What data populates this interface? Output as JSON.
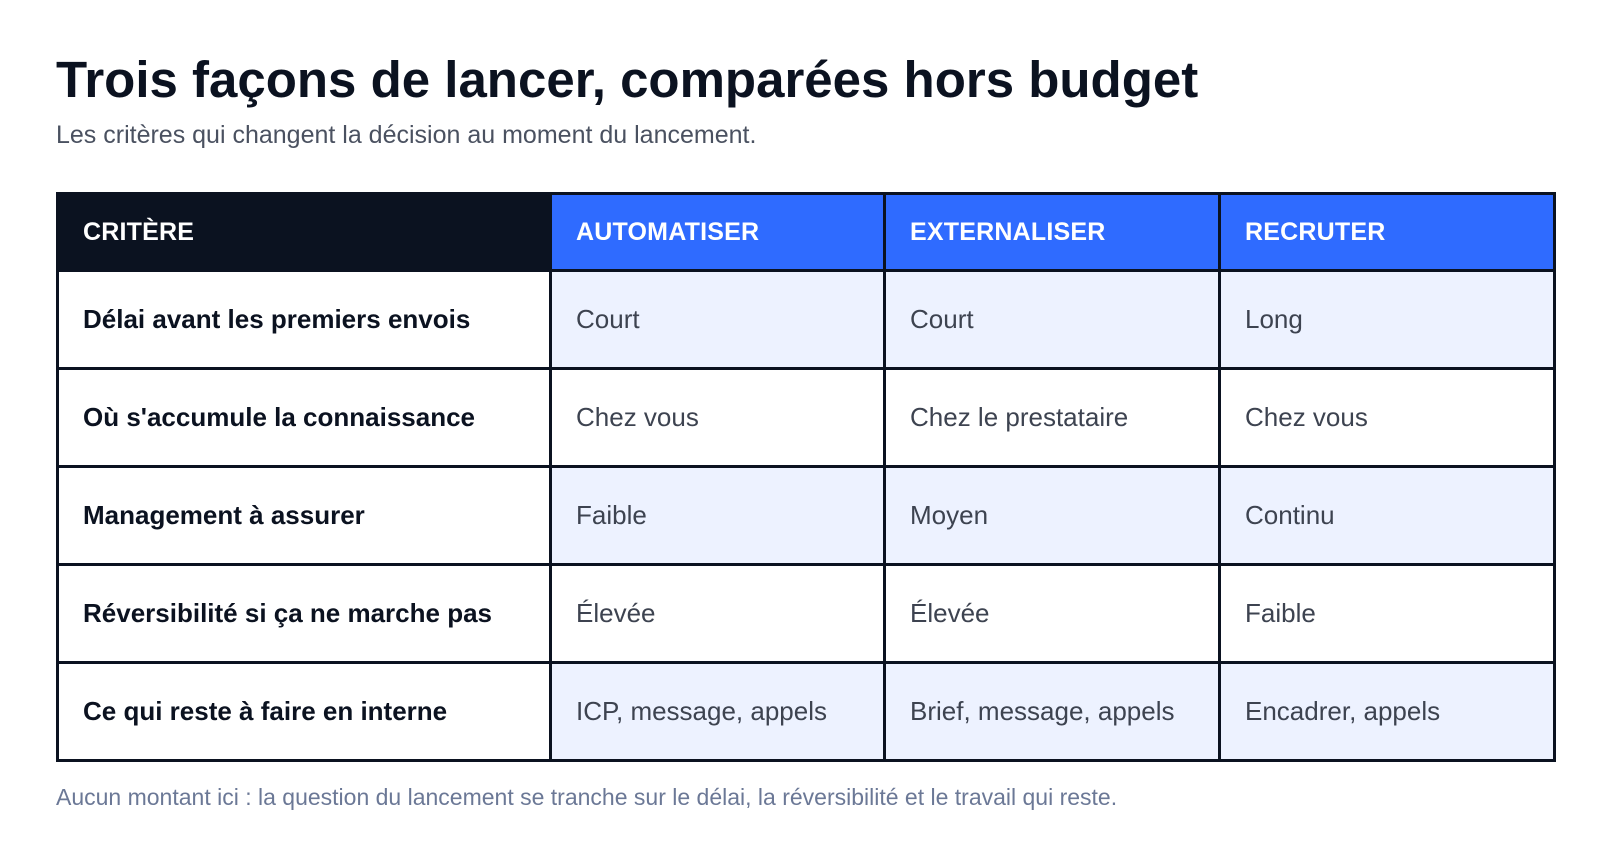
{
  "title": "Trois façons de lancer, comparées hors budget",
  "subtitle": "Les critères qui changent la décision au moment du lancement.",
  "table": {
    "headers": [
      "CRITÈRE",
      "AUTOMATISER",
      "EXTERNALISER",
      "RECRUTER"
    ],
    "rows": [
      {
        "criterion": "Délai avant les premiers envois",
        "values": [
          "Court",
          "Court",
          "Long"
        ]
      },
      {
        "criterion": "Où s'accumule la connaissance",
        "values": [
          "Chez vous",
          "Chez le prestataire",
          "Chez vous"
        ]
      },
      {
        "criterion": "Management à assurer",
        "values": [
          "Faible",
          "Moyen",
          "Continu"
        ]
      },
      {
        "criterion": "Réversibilité si ça ne marche pas",
        "values": [
          "Élevée",
          "Élevée",
          "Faible"
        ]
      },
      {
        "criterion": "Ce qui reste à faire en interne",
        "values": [
          "ICP, message, appels",
          "Brief, message, appels",
          "Encadrer, appels"
        ]
      }
    ]
  },
  "footnote": "Aucun montant ici : la question du lancement se tranche sur le délai, la réversibilité et le travail qui reste.",
  "colors": {
    "title": "#0b1220",
    "header_criterion_bg": "#0b1220",
    "header_option_bg": "#2f6bff",
    "shaded_cell_bg": "#edf2ff",
    "border": "#0b1220",
    "footnote": "#6b7896"
  }
}
